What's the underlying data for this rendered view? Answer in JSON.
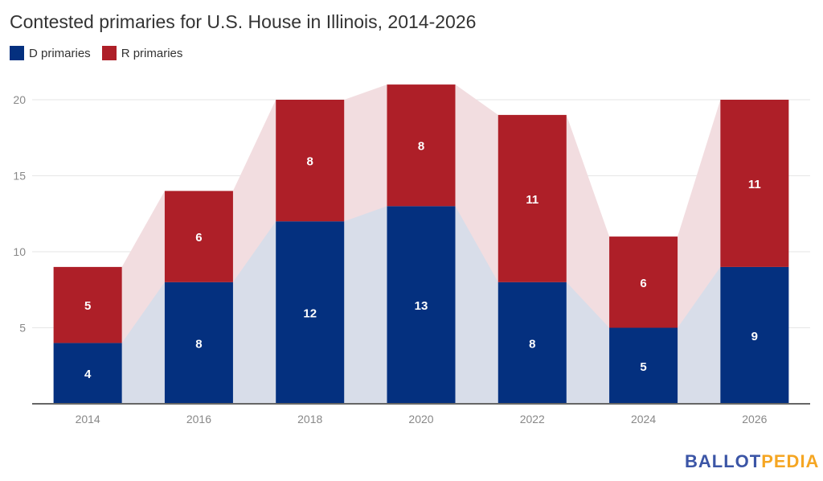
{
  "chart_data": {
    "type": "bar",
    "stacked": true,
    "title": "Contested primaries for U.S. House in Illinois, 2014-2026",
    "xlabel": "",
    "ylabel": "",
    "categories": [
      "2014",
      "2016",
      "2018",
      "2020",
      "2022",
      "2024",
      "2026"
    ],
    "series": [
      {
        "name": "D primaries",
        "color": "#04307f",
        "area_color": "#d8dde9",
        "values": [
          4,
          8,
          12,
          13,
          8,
          5,
          9
        ]
      },
      {
        "name": "R primaries",
        "color": "#ae1f28",
        "area_color": "#f2dde0",
        "values": [
          5,
          6,
          8,
          8,
          11,
          6,
          11
        ]
      }
    ],
    "yticks": [
      5,
      10,
      15,
      20
    ],
    "ylim": [
      0,
      21
    ],
    "grid": true,
    "legend": "top-left",
    "data_labels": true
  },
  "brand": {
    "part1": "BALLOT",
    "part2": "PEDIA",
    "color1": "#3b55a6",
    "color2": "#f5a623"
  }
}
